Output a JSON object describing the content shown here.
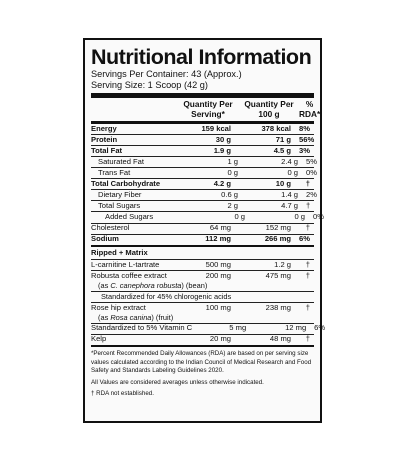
{
  "title": "Nutritional Information",
  "servings_per_container": "Servings Per Container: 43 (Approx.)",
  "serving_size": "Serving Size: 1 Scoop (42 g)",
  "header": {
    "col_per_serving": "Quantity Per Serving*",
    "col_per_100g": "Quantity Per 100 g",
    "col_rda": "% RDA*"
  },
  "nutrients": [
    {
      "name": "Energy",
      "serving": "159 kcal",
      "per100": "378 kcal",
      "rda": "8%",
      "bold": true,
      "indent": 0
    },
    {
      "name": "Protein",
      "serving": "30 g",
      "per100": "71 g",
      "rda": "56%",
      "bold": true,
      "indent": 0
    },
    {
      "name": "Total Fat",
      "serving": "1.9 g",
      "per100": "4.5 g",
      "rda": "3%",
      "bold": true,
      "indent": 0
    },
    {
      "name": "Saturated Fat",
      "serving": "1 g",
      "per100": "2.4 g",
      "rda": "5%",
      "bold": false,
      "indent": 1
    },
    {
      "name": "Trans Fat",
      "serving": "0 g",
      "per100": "0 g",
      "rda": "0%",
      "bold": false,
      "indent": 1
    },
    {
      "name": "Total Carbohydrate",
      "serving": "4.2 g",
      "per100": "10 g",
      "rda": "†",
      "bold": true,
      "indent": 0
    },
    {
      "name": "Dietary Fiber",
      "serving": "0.6 g",
      "per100": "1.4 g",
      "rda": "2%",
      "bold": false,
      "indent": 1
    },
    {
      "name": "Total Sugars",
      "serving": "2 g",
      "per100": "4.7 g",
      "rda": "†",
      "bold": false,
      "indent": 1
    },
    {
      "name": "Added Sugars",
      "serving": "0 g",
      "per100": "0 g",
      "rda": "0%",
      "bold": false,
      "indent": 2
    },
    {
      "name": "Cholesterol",
      "serving": "64 mg",
      "per100": "152 mg",
      "rda": "†",
      "bold": false,
      "indent": 0
    },
    {
      "name": "Sodium",
      "serving": "112 mg",
      "per100": "266 mg",
      "rda": "6%",
      "bold": true,
      "indent": 0
    }
  ],
  "matrix": {
    "heading": "Ripped + Matrix",
    "items": [
      {
        "name": "L-carnitine L-tartrate",
        "serving": "500 mg",
        "per100": "1.2 g",
        "rda": "†"
      },
      {
        "name": "Robusta coffee extract",
        "serving": "200 mg",
        "per100": "475 mg",
        "rda": "†",
        "sub_prefix": "(as ",
        "sub_italic": "C. canephora robusta",
        "sub_suffix": ") (bean)"
      },
      {
        "standardized": "Standardized for 45% chlorogenic acids"
      },
      {
        "name": "Rose hip extract",
        "serving": "100 mg",
        "per100": "238 mg",
        "rda": "†",
        "sub_prefix": "(as ",
        "sub_italic": "Rosa canina",
        "sub_suffix": ") (fruit)"
      },
      {
        "name": "Standardized to 5% Vitamin C",
        "serving": "5 mg",
        "per100": "12 mg",
        "rda": "6%"
      },
      {
        "name": "Kelp",
        "serving": "20 mg",
        "per100": "48 mg",
        "rda": "†"
      }
    ]
  },
  "footnotes": {
    "rda_note": "*Percent Recommended Daily Allowances (RDA) are based on per serving size values calculated according to the Indian Council of Medical Research and Food Safety and Standards Labeling Guidelines 2020.",
    "averages_note": "All Values are considered averages unless otherwise indicated.",
    "dagger_note": "† RDA not established."
  }
}
